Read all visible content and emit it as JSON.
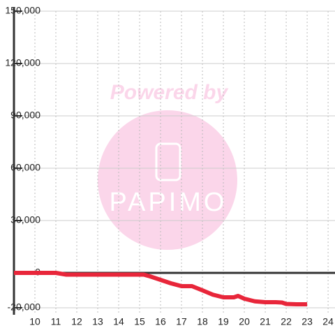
{
  "chart_data": {
    "type": "line",
    "x": [
      9,
      10,
      11,
      11.5,
      12,
      13,
      14,
      15,
      15.2,
      15.5,
      16,
      16.5,
      17,
      17.5,
      18,
      18.5,
      19,
      19.5,
      19.7,
      20,
      20.5,
      21,
      21.5,
      21.8,
      22,
      22.5,
      23
    ],
    "series": [
      {
        "color": "#e8263a",
        "values": [
          0,
          0,
          0,
          -1000,
          -1000,
          -1000,
          -1000,
          -1000,
          -1000,
          -2000,
          -4000,
          -6000,
          -7600,
          -7600,
          -10000,
          -12500,
          -14000,
          -14000,
          -13200,
          -14800,
          -16300,
          -16800,
          -16800,
          -17000,
          -17800,
          -18000,
          -18000
        ]
      }
    ],
    "xlim": [
      9,
      24.33
    ],
    "xticks": [
      10,
      11,
      12,
      13,
      14,
      15,
      16,
      17,
      18,
      19,
      20,
      21,
      22,
      23,
      24
    ],
    "ylim": [
      -24000,
      150000
    ],
    "yticks": [
      {
        "value": -20000,
        "label": "-20,000"
      },
      0,
      {
        "value": 30000,
        "label": "30,000"
      },
      {
        "value": 60000,
        "label": "60,000"
      },
      {
        "value": 90000,
        "label": "90,000"
      },
      {
        "value": 120000,
        "label": "120,000"
      },
      {
        "value": 150000,
        "label": "150,000"
      }
    ],
    "grid": true
  },
  "watermark": {
    "line1": "Powered by",
    "line2": "PAPIMO"
  }
}
